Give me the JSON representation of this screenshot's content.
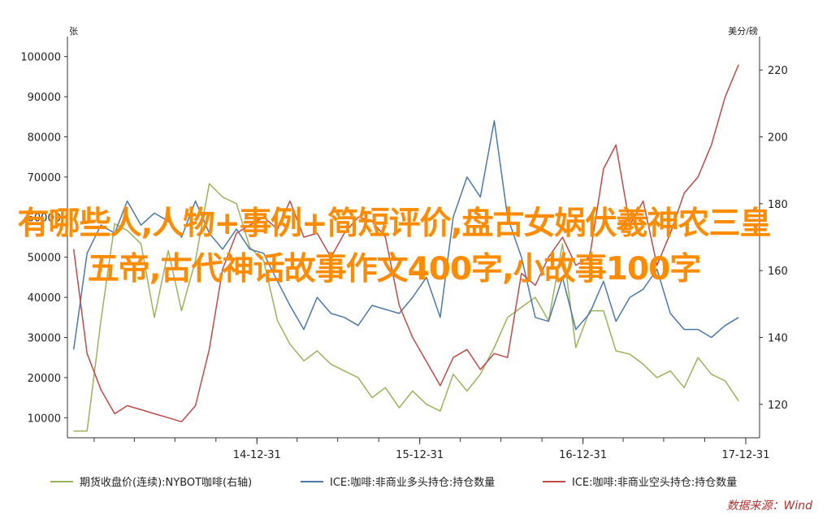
{
  "overlay_title": "有哪些人,人物+事例+简短评价,盘古女娲伏羲神农三皇五帝,古代神话故事作文400字,小故事100字",
  "source_note": "数据来源：Wind",
  "colors": {
    "green": "#9bb35a",
    "blue": "#4f78a8",
    "red": "#bf4b4b",
    "axis": "#333333",
    "overlay": "#ff8c00"
  },
  "chart_data": {
    "type": "line",
    "left_axis": {
      "unit": "张",
      "ylim": [
        5000,
        105000
      ],
      "ticks": [
        10000,
        20000,
        30000,
        40000,
        50000,
        60000,
        70000,
        80000,
        90000,
        100000
      ]
    },
    "right_axis": {
      "unit": "美分/磅",
      "ylim": [
        110,
        230
      ],
      "ticks": [
        120,
        140,
        160,
        180,
        200,
        220
      ]
    },
    "x_ticks": [
      {
        "date": "2014-12-31",
        "label": "14-12-31"
      },
      {
        "date": "2015-12-31",
        "label": "15-12-31"
      },
      {
        "date": "2016-12-31",
        "label": "16-12-31"
      },
      {
        "date": "2017-12-31",
        "label": "17-12-31"
      }
    ],
    "xlim": [
      "2013-11-01",
      "2018-01-31"
    ],
    "legend_position": "bottom",
    "series": [
      {
        "name": "期货收盘价(连续):NYBOT咖啡(右轴)",
        "axis": "right",
        "color": "#9bb35a",
        "x": [
          "2013-11",
          "2013-12",
          "2014-01",
          "2014-02",
          "2014-03",
          "2014-04",
          "2014-05",
          "2014-06",
          "2014-07",
          "2014-08",
          "2014-09",
          "2014-10",
          "2014-11",
          "2014-12",
          "2015-01",
          "2015-02",
          "2015-03",
          "2015-04",
          "2015-05",
          "2015-06",
          "2015-07",
          "2015-08",
          "2015-09",
          "2015-10",
          "2015-11",
          "2015-12",
          "2016-01",
          "2016-02",
          "2016-03",
          "2016-04",
          "2016-05",
          "2016-06",
          "2016-07",
          "2016-08",
          "2016-09",
          "2016-10",
          "2016-11",
          "2016-12",
          "2017-01",
          "2017-02",
          "2017-03",
          "2017-04",
          "2017-05",
          "2017-06",
          "2017-07",
          "2017-08",
          "2017-09",
          "2017-10",
          "2017-11",
          "2017-12"
        ],
        "y": [
          112,
          112,
          145,
          174,
          172,
          168,
          146,
          166,
          148,
          163,
          186,
          182,
          180,
          167,
          163,
          145,
          138,
          133,
          136,
          132,
          130,
          128,
          122,
          125,
          119,
          124,
          120,
          118,
          129,
          124,
          129,
          137,
          146,
          149,
          152,
          145,
          168,
          137,
          148,
          148,
          136,
          135,
          132,
          128,
          130,
          125,
          134,
          129,
          127,
          121
        ]
      },
      {
        "name": "ICE:咖啡:非商业多头持仓:持仓数量",
        "axis": "left",
        "color": "#4f78a8",
        "x": [
          "2013-11",
          "2013-12",
          "2014-01",
          "2014-02",
          "2014-03",
          "2014-04",
          "2014-05",
          "2014-06",
          "2014-07",
          "2014-08",
          "2014-09",
          "2014-10",
          "2014-11",
          "2014-12",
          "2015-01",
          "2015-02",
          "2015-03",
          "2015-04",
          "2015-05",
          "2015-06",
          "2015-07",
          "2015-08",
          "2015-09",
          "2015-10",
          "2015-11",
          "2015-12",
          "2016-01",
          "2016-02",
          "2016-03",
          "2016-04",
          "2016-05",
          "2016-06",
          "2016-07",
          "2016-08",
          "2016-09",
          "2016-10",
          "2016-11",
          "2016-12",
          "2017-01",
          "2017-02",
          "2017-03",
          "2017-04",
          "2017-05",
          "2017-06",
          "2017-07",
          "2017-08",
          "2017-09",
          "2017-10",
          "2017-11",
          "2017-12"
        ],
        "y": [
          27000,
          51000,
          58000,
          56000,
          64000,
          58000,
          61000,
          59000,
          55000,
          64000,
          56000,
          52000,
          57000,
          52000,
          51000,
          44000,
          38000,
          32000,
          40000,
          36000,
          35000,
          33000,
          38000,
          37000,
          36000,
          40000,
          45000,
          35000,
          60000,
          70000,
          65000,
          84000,
          60000,
          50000,
          35000,
          34000,
          45000,
          32000,
          36000,
          44000,
          34000,
          40000,
          42000,
          47000,
          36000,
          32000,
          32000,
          30000,
          33000,
          35000
        ]
      },
      {
        "name": "ICE:咖啡:非商业空头持仓:持仓数量",
        "axis": "left",
        "color": "#bf4b4b",
        "x": [
          "2013-11",
          "2013-12",
          "2014-01",
          "2014-02",
          "2014-03",
          "2014-04",
          "2014-05",
          "2014-06",
          "2014-07",
          "2014-08",
          "2014-09",
          "2014-10",
          "2014-11",
          "2014-12",
          "2015-01",
          "2015-02",
          "2015-03",
          "2015-04",
          "2015-05",
          "2015-06",
          "2015-07",
          "2015-08",
          "2015-09",
          "2015-10",
          "2015-11",
          "2015-12",
          "2016-01",
          "2016-02",
          "2016-03",
          "2016-04",
          "2016-05",
          "2016-06",
          "2016-07",
          "2016-08",
          "2016-09",
          "2016-10",
          "2016-11",
          "2016-12",
          "2017-01",
          "2017-02",
          "2017-03",
          "2017-04",
          "2017-05",
          "2017-06",
          "2017-07",
          "2017-08",
          "2017-09",
          "2017-10",
          "2017-11",
          "2017-12"
        ],
        "y": [
          52000,
          26000,
          17000,
          11000,
          13000,
          12000,
          11000,
          10000,
          9000,
          13000,
          27000,
          47000,
          56000,
          58000,
          60000,
          57000,
          64000,
          55000,
          56000,
          50000,
          56000,
          60000,
          59000,
          55000,
          38000,
          30000,
          24000,
          18000,
          25000,
          27000,
          22000,
          26000,
          25000,
          46000,
          43000,
          50000,
          55000,
          48000,
          50000,
          72000,
          78000,
          58000,
          64000,
          48000,
          56000,
          66000,
          70000,
          78000,
          90000,
          98000
        ]
      }
    ]
  }
}
